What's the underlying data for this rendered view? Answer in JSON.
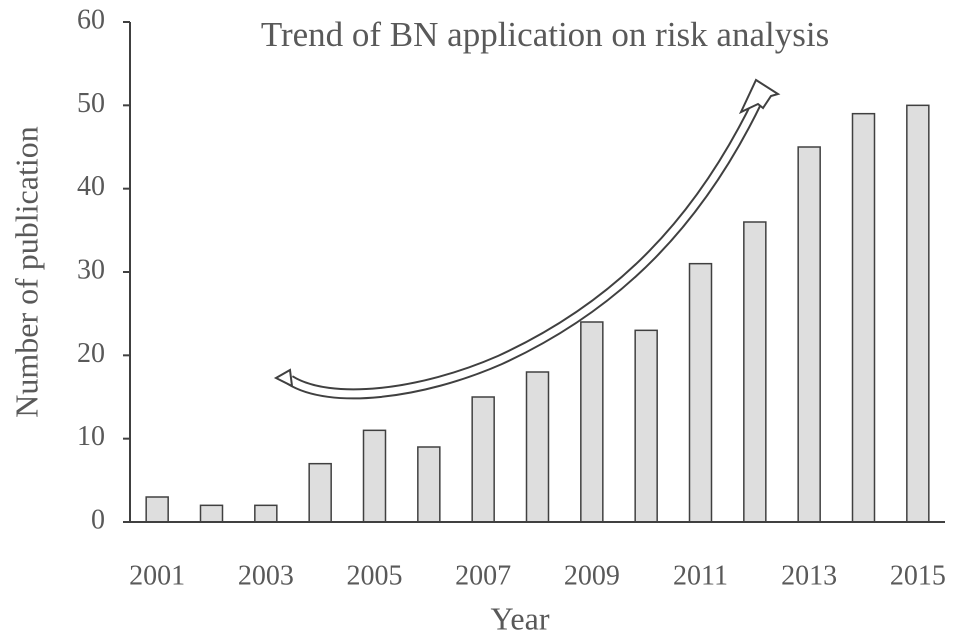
{
  "chart_data": {
    "type": "bar",
    "title": "Trend of BN application on risk analysis",
    "x_label": "Year",
    "y_label": "Number of publication",
    "categories": [
      "2001",
      null,
      "2003",
      null,
      "2005",
      null,
      "2007",
      null,
      "2009",
      null,
      "2011",
      null,
      "2013",
      null,
      "2015"
    ],
    "values": [
      3,
      2,
      2,
      7,
      11,
      9,
      15,
      18,
      24,
      23,
      31,
      36,
      45,
      49,
      50
    ],
    "color": "#dedede",
    "ylim": [
      0,
      60
    ],
    "yticks": [
      0,
      10,
      20,
      30,
      40,
      50,
      60
    ],
    "grid": false
  }
}
